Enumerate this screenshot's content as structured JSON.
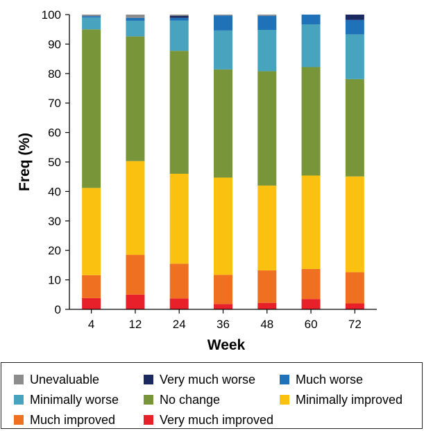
{
  "chart_data": {
    "type": "bar",
    "stacked": true,
    "categories": [
      "4",
      "12",
      "24",
      "36",
      "48",
      "60",
      "72"
    ],
    "xlabel": "Week",
    "ylabel": "Freq (%)",
    "ylim": [
      0,
      100
    ],
    "yticks": [
      "0",
      "10",
      "20",
      "30",
      "40",
      "50",
      "60",
      "70",
      "80",
      "90",
      "100"
    ],
    "grid": false,
    "legend_position": "bottom",
    "series": [
      {
        "name": "Very much improved",
        "color": "#e8202a",
        "values": [
          3.8,
          5.0,
          3.7,
          1.8,
          2.2,
          3.5,
          2.0
        ]
      },
      {
        "name": "Much improved",
        "color": "#f07022",
        "values": [
          7.8,
          13.5,
          11.8,
          9.9,
          11.0,
          10.2,
          10.6
        ]
      },
      {
        "name": "Minimally improved",
        "color": "#fbc110",
        "values": [
          29.6,
          31.8,
          30.5,
          33.0,
          28.8,
          31.7,
          32.5
        ]
      },
      {
        "name": "No change",
        "color": "#79953a",
        "values": [
          53.8,
          42.3,
          41.7,
          36.7,
          38.8,
          36.8,
          33.0
        ]
      },
      {
        "name": "Minimally worse",
        "color": "#47a3be",
        "values": [
          4.0,
          5.3,
          10.3,
          13.2,
          14.0,
          14.5,
          15.2
        ]
      },
      {
        "name": "Much worse",
        "color": "#1f72b8",
        "values": [
          0.5,
          1.0,
          0.9,
          5.1,
          4.8,
          3.3,
          4.9
        ]
      },
      {
        "name": "Very much worse",
        "color": "#1b2a5e",
        "values": [
          0.0,
          0.0,
          0.7,
          0.0,
          0.0,
          0.0,
          1.8
        ]
      },
      {
        "name": "Unevaluable",
        "color": "#8c8c8c",
        "values": [
          0.5,
          1.1,
          0.4,
          0.3,
          0.4,
          0.0,
          0.0
        ]
      }
    ]
  },
  "legend": {
    "unevaluable": "Unevaluable",
    "very_much_worse": "Very much worse",
    "much_worse": "Much worse",
    "minimally_worse": "Minimally worse",
    "no_change": "No change",
    "minimally_improved": "Minimally improved",
    "much_improved": "Much improved",
    "very_much_improved": "Very much improved"
  },
  "legend_colors": {
    "unevaluable": "#8c8c8c",
    "very_much_worse": "#1b2a5e",
    "much_worse": "#1f72b8",
    "minimally_worse": "#47a3be",
    "no_change": "#79953a",
    "minimally_improved": "#fbc110",
    "much_improved": "#f07022",
    "very_much_improved": "#e8202a"
  }
}
